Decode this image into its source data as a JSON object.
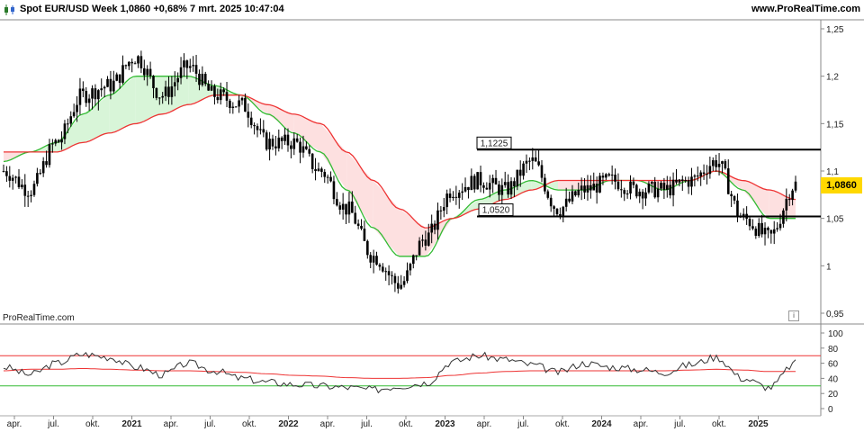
{
  "header": {
    "title": "Spot EUR/USD Week 1,0860 +0,68% 7 mrt. 2025 10:47:04",
    "site": "www.ProRealTime.com"
  },
  "watermark": "ProRealTime.com",
  "info_icon": "i",
  "colors": {
    "candles": "#000000",
    "ma_fast": "#33bb33",
    "ma_slow": "#ee3333",
    "fill_green": "#d8f5d8",
    "fill_red": "#fde0e0",
    "level_lines": "#000000",
    "price_box": "#ffd800"
  },
  "chart_data": [
    {
      "type": "candlestick",
      "title": "Spot EUR/USD Week",
      "last_price": "1,0860",
      "change": "+0,68%",
      "ylim": [
        0.95,
        1.25
      ],
      "y_ticks": [
        "1,25",
        "1,2",
        "1,15",
        "1,1",
        "1,05",
        "1",
        "0,95"
      ],
      "x_ticks": [
        "apr.",
        "jul.",
        "okt.",
        "2021",
        "apr.",
        "jul.",
        "okt.",
        "2022",
        "apr.",
        "jul.",
        "okt.",
        "2023",
        "apr.",
        "jul.",
        "okt.",
        "2024",
        "apr.",
        "jul.",
        "okt.",
        "2025"
      ],
      "horizontal_levels": [
        {
          "label": "1,1225",
          "value": 1.1225
        },
        {
          "label": "1,0520",
          "value": 1.052
        }
      ],
      "close_series": {
        "x": [
          "2020-03",
          "2020-05",
          "2020-07",
          "2020-09",
          "2020-11",
          "2021-01",
          "2021-03",
          "2021-05",
          "2021-07",
          "2021-09",
          "2021-11",
          "2022-01",
          "2022-03",
          "2022-05",
          "2022-07",
          "2022-09",
          "2022-11",
          "2023-01",
          "2023-03",
          "2023-05",
          "2023-07",
          "2023-09",
          "2023-11",
          "2024-01",
          "2024-03",
          "2024-05",
          "2024-07",
          "2024-09",
          "2024-11",
          "2025-01",
          "2025-03"
        ],
        "y": [
          1.1,
          1.08,
          1.13,
          1.18,
          1.19,
          1.22,
          1.18,
          1.21,
          1.18,
          1.17,
          1.13,
          1.13,
          1.1,
          1.06,
          1.01,
          0.98,
          1.03,
          1.08,
          1.09,
          1.08,
          1.11,
          1.06,
          1.08,
          1.09,
          1.08,
          1.08,
          1.09,
          1.11,
          1.05,
          1.03,
          1.086
        ]
      },
      "moving_averages": [
        {
          "color": "green",
          "values": [
            1.11,
            1.12,
            1.13,
            1.16,
            1.18,
            1.2,
            1.2,
            1.2,
            1.19,
            1.18,
            1.16,
            1.14,
            1.12,
            1.08,
            1.04,
            1.01,
            1.01,
            1.05,
            1.07,
            1.08,
            1.09,
            1.08,
            1.08,
            1.09,
            1.09,
            1.08,
            1.09,
            1.1,
            1.08,
            1.05,
            1.05
          ]
        },
        {
          "color": "red",
          "values": [
            1.12,
            1.12,
            1.12,
            1.13,
            1.14,
            1.15,
            1.16,
            1.17,
            1.18,
            1.18,
            1.17,
            1.16,
            1.15,
            1.12,
            1.09,
            1.06,
            1.04,
            1.05,
            1.06,
            1.07,
            1.08,
            1.09,
            1.09,
            1.09,
            1.09,
            1.09,
            1.09,
            1.1,
            1.09,
            1.08,
            1.07
          ]
        }
      ]
    },
    {
      "type": "line",
      "ylim": [
        0,
        100
      ],
      "y_ticks": [
        "100",
        "80",
        "60",
        "40",
        "20",
        "0"
      ],
      "levels": [
        {
          "color": "red",
          "value": 70
        },
        {
          "color": "green",
          "value": 30
        }
      ],
      "oscillator": [
        55,
        45,
        60,
        72,
        68,
        55,
        45,
        60,
        50,
        40,
        35,
        32,
        30,
        28,
        25,
        30,
        34,
        62,
        70,
        65,
        58,
        48,
        60,
        55,
        52,
        48,
        58,
        68,
        40,
        28,
        60
      ],
      "signal": [
        50,
        52,
        52,
        53,
        52,
        51,
        50,
        50,
        49,
        48,
        46,
        44,
        43,
        41,
        40,
        40,
        41,
        44,
        47,
        49,
        50,
        50,
        50,
        50,
        50,
        50,
        51,
        52,
        51,
        49,
        49
      ]
    }
  ]
}
